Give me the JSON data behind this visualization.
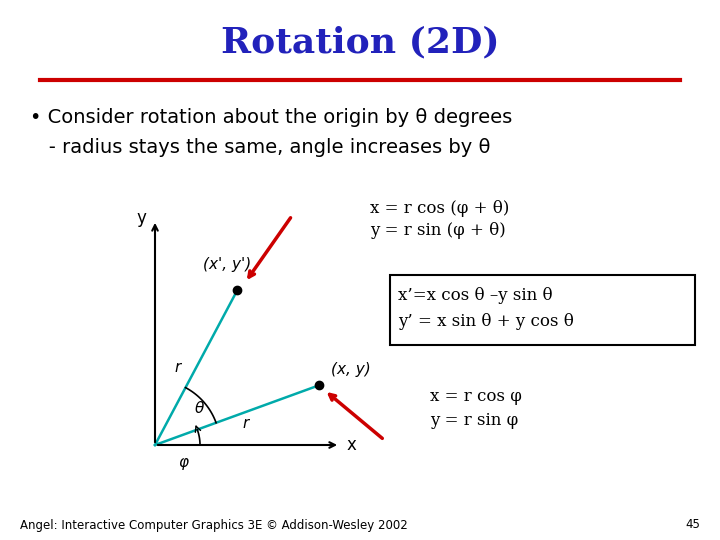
{
  "title": "Rotation (2D)",
  "title_color": "#2222bb",
  "title_fontsize": 26,
  "bg_color": "#ffffff",
  "line_color_red": "#cc0000",
  "line_color_blue": "#00aaaa",
  "bullet_text1": "• Consider rotation about the origin by θ degrees",
  "bullet_text2": "   - radius stays the same, angle increases by θ",
  "eq1": "x = r cos (φ + θ)",
  "eq2": "y = r sin (φ + θ)",
  "eq3": "x’=x cos θ –y sin θ",
  "eq4": "y’ = x sin θ + y cos θ",
  "eq5": "x = r cos φ",
  "eq6": "y = r sin φ",
  "footer": "Angel: Interactive Computer Graphics 3E © Addison-Wesley 2002",
  "page_num": "45"
}
